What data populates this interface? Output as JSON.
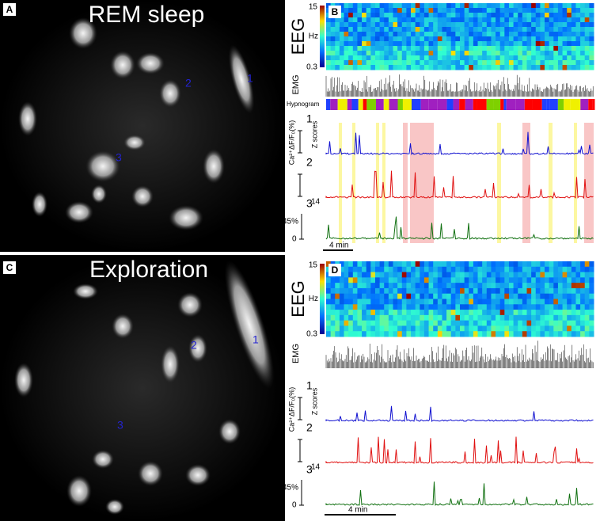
{
  "panels": [
    {
      "label": "A",
      "title": "REM sleep",
      "cells": [
        "1",
        "2",
        "3"
      ]
    },
    {
      "label": "B",
      "eeg_label": "EEG",
      "eeg_scale": [
        "15",
        "Hz",
        "0.3"
      ],
      "emg_label": "EMG",
      "hypnogram_label": "Hypnogram",
      "calcium_label": "Ca²⁺ΔF/F₀(%)",
      "z_label": "Z scores",
      "traces": [
        "1",
        "2",
        "3"
      ],
      "scale_labels": [
        "14",
        "45%",
        "0"
      ],
      "time_scale": "4 min"
    },
    {
      "label": "C",
      "title": "Exploration",
      "cells": [
        "1",
        "2",
        "3"
      ]
    },
    {
      "label": "D",
      "eeg_label": "EEG",
      "eeg_scale": [
        "15",
        "Hz",
        "0.3"
      ],
      "emg_label": "EMG",
      "calcium_label": "Ca²⁺ΔF/F₀(%)",
      "z_label": "Z scores",
      "traces": [
        "1",
        "2",
        "3"
      ],
      "scale_labels": [
        "14",
        "45%",
        "0"
      ],
      "time_scale": "4 min"
    }
  ]
}
